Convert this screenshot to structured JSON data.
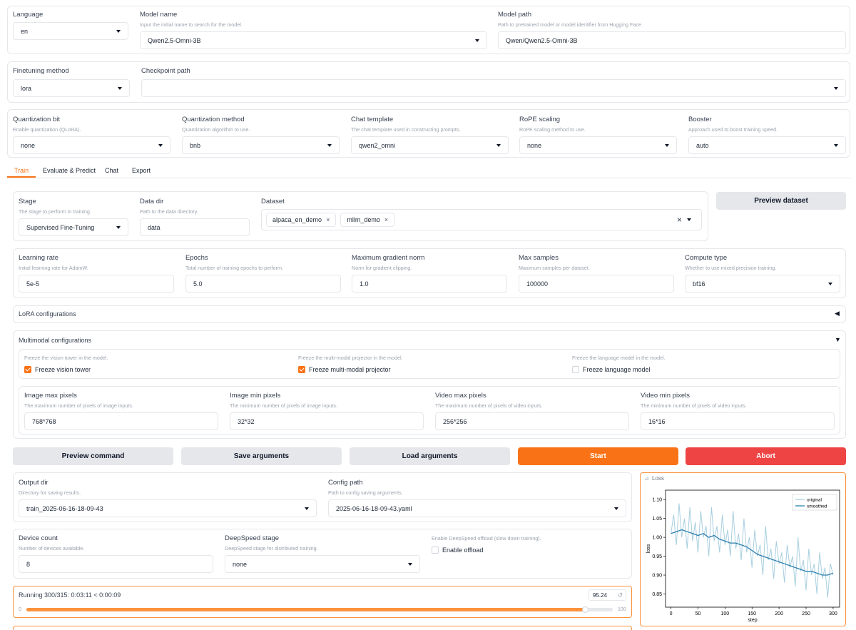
{
  "top": {
    "language": {
      "label": "Language",
      "value": "en"
    },
    "model_name": {
      "label": "Model name",
      "info": "Input the initial name to search for the model.",
      "value": "Qwen2.5-Omni-3B"
    },
    "model_path": {
      "label": "Model path",
      "info": "Path to pretrained model or model identifier from Hugging Face.",
      "value": "Qwen/Qwen2.5-Omni-3B"
    },
    "finetuning_method": {
      "label": "Finetuning method",
      "value": "lora"
    },
    "checkpoint_path": {
      "label": "Checkpoint path",
      "value": ""
    },
    "quantization_bit": {
      "label": "Quantization bit",
      "info": "Enable quantization (QLoRA).",
      "value": "none"
    },
    "quantization_method": {
      "label": "Quantization method",
      "info": "Quantization algorithm to use.",
      "value": "bnb"
    },
    "chat_template": {
      "label": "Chat template",
      "info": "The chat template used in constructing prompts.",
      "value": "qwen2_omni"
    },
    "rope_scaling": {
      "label": "RoPE scaling",
      "info": "RoPE scaling method to use.",
      "value": "none"
    },
    "booster": {
      "label": "Booster",
      "info": "Approach used to boost training speed.",
      "value": "auto"
    }
  },
  "tabs": [
    {
      "label": "Train",
      "active": true
    },
    {
      "label": "Evaluate & Predict",
      "active": false
    },
    {
      "label": "Chat",
      "active": false
    },
    {
      "label": "Export",
      "active": false
    }
  ],
  "train": {
    "stage": {
      "label": "Stage",
      "info": "The stage to perform in training.",
      "value": "Supervised Fine-Tuning"
    },
    "data_dir": {
      "label": "Data dir",
      "info": "Path to the data directory.",
      "value": "data"
    },
    "dataset": {
      "label": "Dataset",
      "chips": [
        "alpaca_en_demo",
        "mllm_demo"
      ],
      "clear_glyph": "×"
    },
    "preview_dataset": "Preview dataset",
    "learning_rate": {
      "label": "Learning rate",
      "info": "Initial learning rate for AdamW.",
      "value": "5e-5"
    },
    "epochs": {
      "label": "Epochs",
      "info": "Total number of training epochs to perform.",
      "value": "5.0"
    },
    "max_grad_norm": {
      "label": "Maximum gradient norm",
      "info": "Norm for gradient clipping.",
      "value": "1.0"
    },
    "max_samples": {
      "label": "Max samples",
      "info": "Maximum samples per dataset.",
      "value": "100000"
    },
    "compute_type": {
      "label": "Compute type",
      "info": "Whether to use mixed precision training.",
      "value": "bf16"
    },
    "lora_config": {
      "label": "LoRA configurations",
      "arrow": "◀"
    },
    "multimodal": {
      "label": "Multimodal configurations",
      "arrow": "▼",
      "freeze_vision": {
        "info": "Freeze the vision tower in the model.",
        "label": "Freeze vision tower",
        "checked": true
      },
      "freeze_projector": {
        "info": "Freeze the multi-modal projector in the model.",
        "label": "Freeze multi-modal projector",
        "checked": true
      },
      "freeze_language": {
        "info": "Freeze the language model in the model.",
        "label": "Freeze language model",
        "checked": false
      },
      "image_max": {
        "label": "Image max pixels",
        "info": "The maximum number of pixels of image inputs.",
        "value": "768*768"
      },
      "image_min": {
        "label": "Image min pixels",
        "info": "The minimum number of pixels of image inputs.",
        "value": "32*32"
      },
      "video_max": {
        "label": "Video max pixels",
        "info": "The maximum number of pixels of video inputs.",
        "value": "256*256"
      },
      "video_min": {
        "label": "Video min pixels",
        "info": "The minimum number of pixels of video inputs.",
        "value": "16*16"
      }
    },
    "buttons": {
      "preview_command": "Preview command",
      "save_arguments": "Save arguments",
      "load_arguments": "Load arguments",
      "start": "Start",
      "abort": "Abort"
    },
    "output_dir": {
      "label": "Output dir",
      "info": "Directory for saving results.",
      "value": "train_2025-06-16-18-09-43"
    },
    "config_path": {
      "label": "Config path",
      "info": "Path to config saving arguments.",
      "value": "2025-06-16-18-09-43.yaml"
    },
    "device_count": {
      "label": "Device count",
      "info": "Number of devices available.",
      "value": "8"
    },
    "deepspeed_stage": {
      "label": "DeepSpeed stage",
      "info": "DeepSpeed stage for distributed training.",
      "value": "none"
    },
    "deepspeed_offload": {
      "info": "Enable DeepSpeed offload (slow down training).",
      "label": "Enable offload",
      "checked": false
    },
    "progress": {
      "text": "Running 300/315: 0:03:11 < 0:00:09",
      "value_display": "95.24",
      "min": "0",
      "max": "100",
      "value": 95.24,
      "reset_glyph": "↺"
    }
  },
  "chart_data": {
    "type": "line",
    "title": "Loss",
    "xlabel": "step",
    "ylabel": "loss",
    "xlim": [
      -10,
      312
    ],
    "ylim": [
      0.815,
      1.125
    ],
    "xticks": [
      0,
      50,
      100,
      150,
      200,
      250,
      300
    ],
    "yticks": [
      0.85,
      0.9,
      0.95,
      1.0,
      1.05,
      1.1
    ],
    "ytick_labels": [
      "0.85",
      "0.90",
      "0.95",
      "1.00",
      "1.05",
      "1.10"
    ],
    "legend_position": "top-right",
    "series": [
      {
        "name": "original",
        "color": "#a8cfe0",
        "x": [
          0,
          5,
          10,
          15,
          20,
          25,
          30,
          35,
          40,
          45,
          50,
          55,
          60,
          65,
          70,
          75,
          80,
          85,
          90,
          95,
          100,
          105,
          110,
          115,
          120,
          125,
          130,
          135,
          140,
          145,
          150,
          155,
          160,
          165,
          170,
          175,
          180,
          185,
          190,
          195,
          200,
          205,
          210,
          215,
          220,
          225,
          230,
          235,
          240,
          245,
          250,
          255,
          260,
          265,
          270,
          275,
          280,
          285,
          290,
          295,
          300
        ],
        "y": [
          1.01,
          1.06,
          0.98,
          1.09,
          1.0,
          1.05,
          0.97,
          1.08,
          0.99,
          1.04,
          0.96,
          1.07,
          1.0,
          1.03,
          0.95,
          1.08,
          0.99,
          1.03,
          0.96,
          1.06,
          0.98,
          1.02,
          0.95,
          1.07,
          0.97,
          1.01,
          0.94,
          1.05,
          0.96,
          1.0,
          0.92,
          1.02,
          0.95,
          0.98,
          0.9,
          1.03,
          0.94,
          0.97,
          0.89,
          0.99,
          0.93,
          0.96,
          0.88,
          0.98,
          0.92,
          0.95,
          0.87,
          1.0,
          0.91,
          0.94,
          0.86,
          0.97,
          0.9,
          0.93,
          0.85,
          0.96,
          0.89,
          0.92,
          0.84,
          0.93,
          0.9
        ]
      },
      {
        "name": "smoothed",
        "color": "#2f7fae",
        "x": [
          0,
          10,
          20,
          30,
          40,
          50,
          60,
          70,
          80,
          90,
          100,
          110,
          120,
          130,
          140,
          150,
          160,
          170,
          180,
          190,
          200,
          210,
          220,
          230,
          240,
          250,
          260,
          270,
          280,
          290,
          300
        ],
        "y": [
          1.01,
          1.015,
          1.02,
          1.015,
          1.01,
          1.005,
          1.01,
          1.0,
          1.005,
          0.995,
          0.99,
          0.985,
          0.985,
          0.98,
          0.975,
          0.965,
          0.955,
          0.95,
          0.945,
          0.94,
          0.935,
          0.93,
          0.925,
          0.92,
          0.915,
          0.91,
          0.91,
          0.905,
          0.9,
          0.9,
          0.905
        ]
      }
    ]
  }
}
